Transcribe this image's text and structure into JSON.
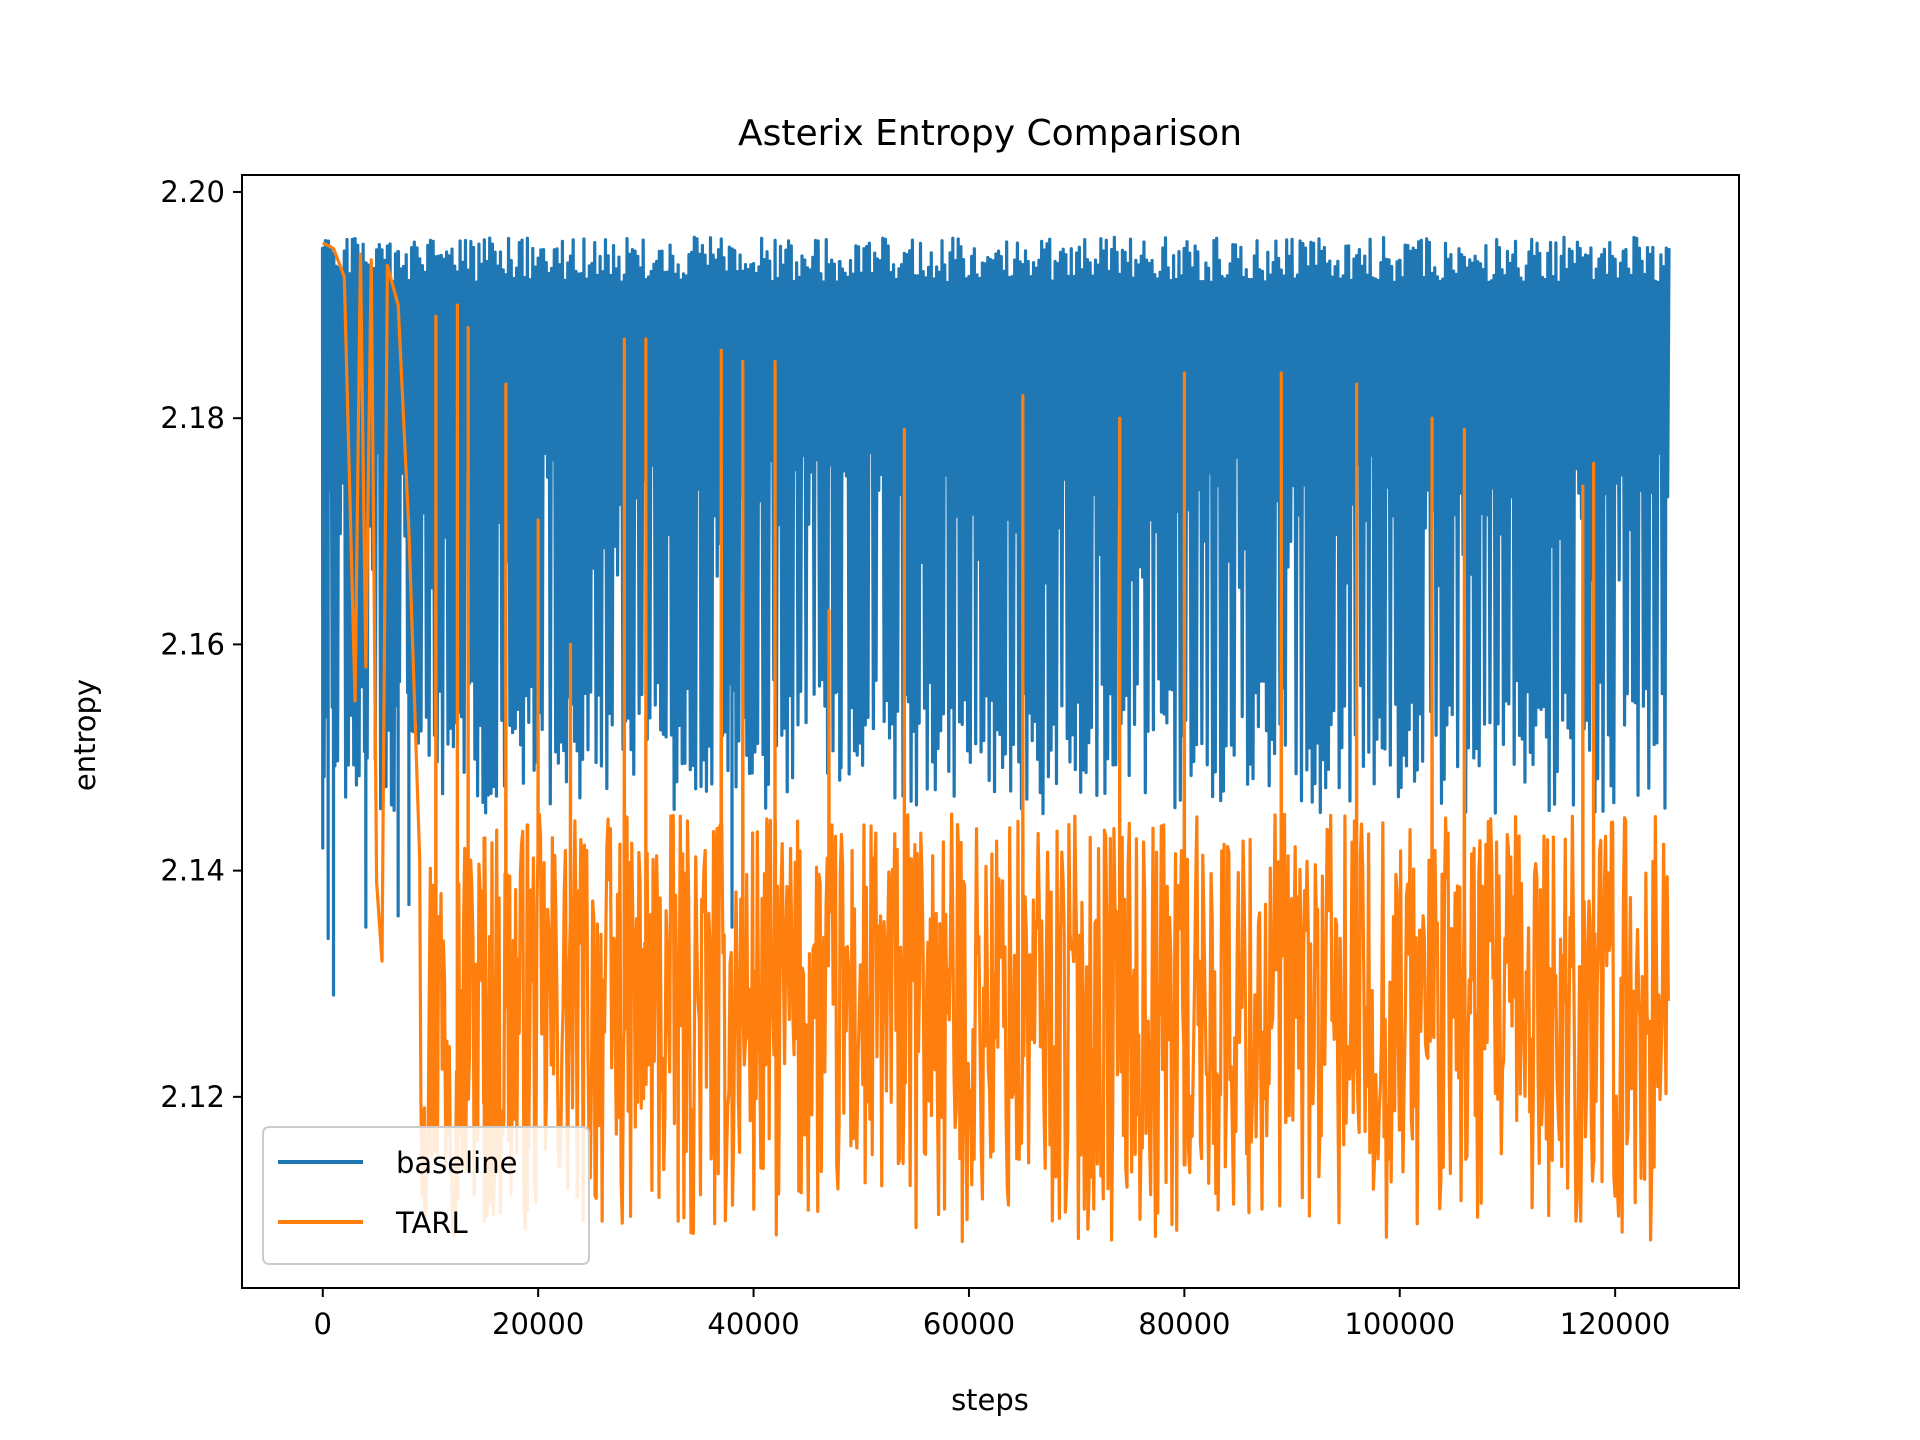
{
  "chart_data": {
    "type": "line",
    "title": "Asterix Entropy Comparison",
    "xlabel": "steps",
    "ylabel": "entropy",
    "xlim": [
      -7500,
      131500
    ],
    "ylim": [
      2.1031,
      2.2015
    ],
    "xticks": [
      0,
      20000,
      40000,
      60000,
      80000,
      100000,
      120000
    ],
    "xtick_labels": [
      "0",
      "20000",
      "40000",
      "60000",
      "80000",
      "100000",
      "120000"
    ],
    "yticks": [
      2.12,
      2.14,
      2.16,
      2.18,
      2.2
    ],
    "ytick_labels": [
      "2.12",
      "2.14",
      "2.16",
      "2.18",
      "2.20"
    ],
    "grid": false,
    "legend_position": "lower-left",
    "series": [
      {
        "name": "baseline",
        "color": "#1f77b4",
        "x_range": [
          0,
          125000
        ],
        "approx_upper_envelope": 2.196,
        "approx_lower_envelope": 2.145,
        "spikes": [
          {
            "x": 0,
            "y": 2.142
          },
          {
            "x": 500,
            "y": 2.134
          },
          {
            "x": 1000,
            "y": 2.129
          },
          {
            "x": 4000,
            "y": 2.135
          },
          {
            "x": 7000,
            "y": 2.136
          },
          {
            "x": 8000,
            "y": 2.137
          },
          {
            "x": 38000,
            "y": 2.135
          },
          {
            "x": 48000,
            "y": 2.148
          },
          {
            "x": 80000,
            "y": 2.141
          },
          {
            "x": 100000,
            "y": 2.178
          }
        ]
      },
      {
        "name": "TARL",
        "color": "#ff7f0e",
        "x_range": [
          0,
          125000
        ],
        "initial_value": 2.1955,
        "initial_decay": [
          {
            "x": 0,
            "y": 2.1955
          },
          {
            "x": 1000,
            "y": 2.195
          },
          {
            "x": 2000,
            "y": 2.1925
          },
          {
            "x": 3000,
            "y": 2.155
          },
          {
            "x": 3500,
            "y": 2.1945
          },
          {
            "x": 4000,
            "y": 2.158
          },
          {
            "x": 4500,
            "y": 2.194
          },
          {
            "x": 5000,
            "y": 2.139
          },
          {
            "x": 5500,
            "y": 2.132
          },
          {
            "x": 6000,
            "y": 2.1935
          },
          {
            "x": 7000,
            "y": 2.19
          },
          {
            "x": 8000,
            "y": 2.17
          },
          {
            "x": 9000,
            "y": 2.141
          }
        ],
        "approx_upper_envelope": 2.145,
        "approx_lower_envelope": 2.107,
        "spikes": [
          {
            "x": 9500,
            "y": 2.112
          },
          {
            "x": 10500,
            "y": 2.189
          },
          {
            "x": 12500,
            "y": 2.19
          },
          {
            "x": 13500,
            "y": 2.188
          },
          {
            "x": 15000,
            "y": 2.109
          },
          {
            "x": 17000,
            "y": 2.183
          },
          {
            "x": 19000,
            "y": 2.11
          },
          {
            "x": 20000,
            "y": 2.171
          },
          {
            "x": 23000,
            "y": 2.16
          },
          {
            "x": 28000,
            "y": 2.187
          },
          {
            "x": 30000,
            "y": 2.187
          },
          {
            "x": 33000,
            "y": 2.109
          },
          {
            "x": 37000,
            "y": 2.186
          },
          {
            "x": 39000,
            "y": 2.185
          },
          {
            "x": 42000,
            "y": 2.185
          },
          {
            "x": 47000,
            "y": 2.163
          },
          {
            "x": 54000,
            "y": 2.179
          },
          {
            "x": 65000,
            "y": 2.182
          },
          {
            "x": 74000,
            "y": 2.18
          },
          {
            "x": 80000,
            "y": 2.184
          },
          {
            "x": 89000,
            "y": 2.184
          },
          {
            "x": 96000,
            "y": 2.183
          },
          {
            "x": 103000,
            "y": 2.18
          },
          {
            "x": 106000,
            "y": 2.179
          },
          {
            "x": 117000,
            "y": 2.174
          },
          {
            "x": 118000,
            "y": 2.176
          }
        ]
      }
    ]
  }
}
